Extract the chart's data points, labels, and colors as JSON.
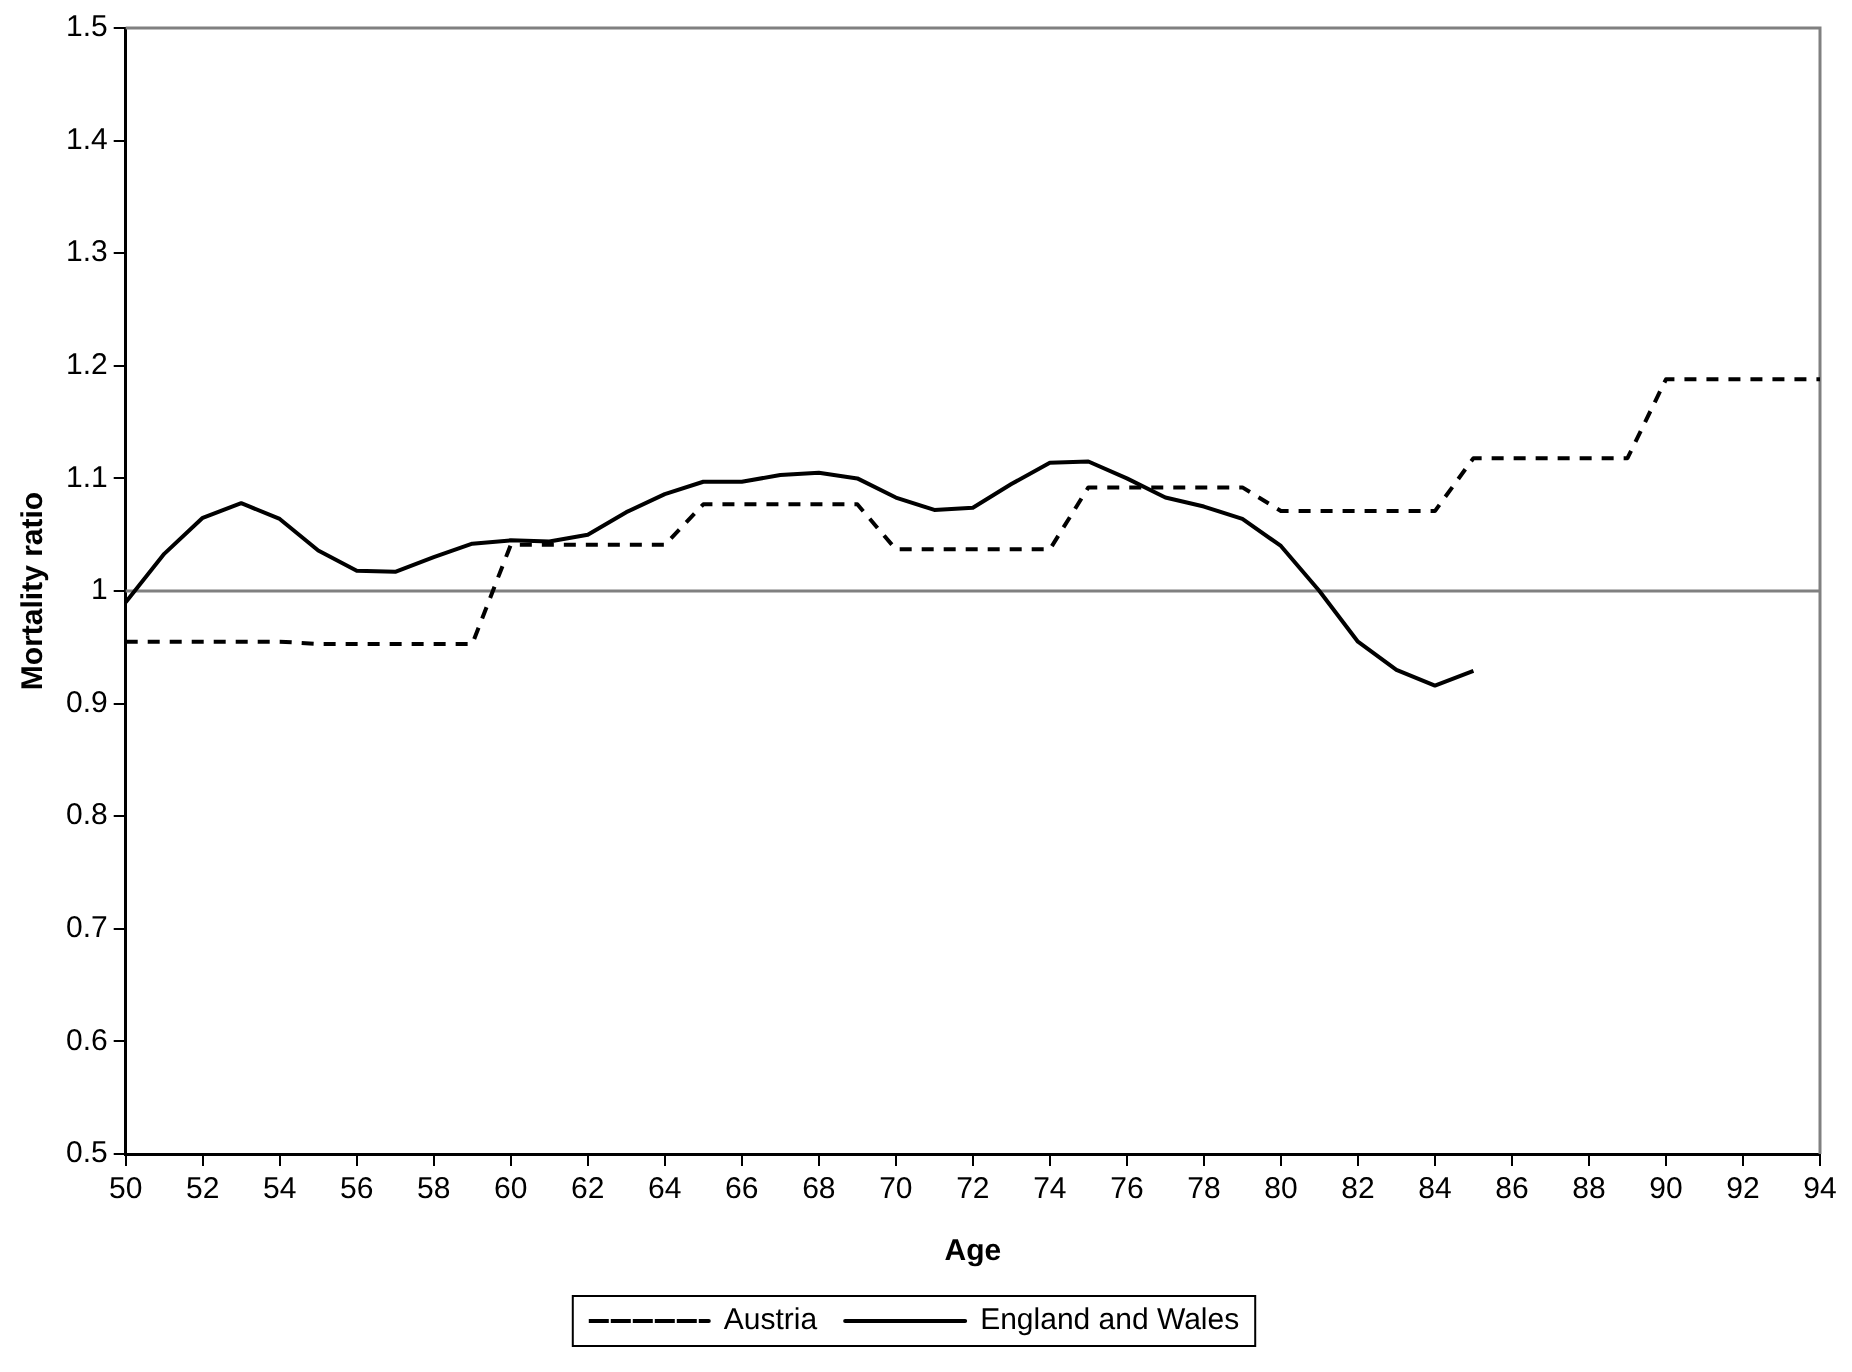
{
  "chart_data": {
    "type": "line",
    "xlabel": "Age",
    "ylabel": "Mortality ratio",
    "x": [
      50,
      51,
      52,
      53,
      54,
      55,
      56,
      57,
      58,
      59,
      60,
      61,
      62,
      63,
      64,
      65,
      66,
      67,
      68,
      69,
      70,
      71,
      72,
      73,
      74,
      75,
      76,
      77,
      78,
      79,
      80,
      81,
      82,
      83,
      84,
      85,
      86,
      87,
      88,
      89,
      90,
      91,
      92,
      93,
      94
    ],
    "series": [
      {
        "name": "Austria",
        "color": "#000000",
        "line_style": "dashed",
        "values": [
          0.955,
          0.955,
          0.955,
          0.955,
          0.955,
          0.953,
          0.953,
          0.953,
          0.953,
          0.953,
          1.041,
          1.041,
          1.041,
          1.041,
          1.041,
          1.077,
          1.077,
          1.077,
          1.077,
          1.077,
          1.037,
          1.037,
          1.037,
          1.037,
          1.037,
          1.092,
          1.092,
          1.092,
          1.092,
          1.092,
          1.071,
          1.071,
          1.071,
          1.071,
          1.071,
          1.118,
          1.118,
          1.118,
          1.118,
          1.118,
          1.188,
          1.188,
          1.188,
          1.188,
          1.188
        ]
      },
      {
        "name": "England and Wales",
        "color": "#000000",
        "line_style": "solid",
        "values": [
          0.99,
          1.033,
          1.065,
          1.078,
          1.064,
          1.036,
          1.018,
          1.017,
          1.03,
          1.042,
          1.045,
          1.044,
          1.05,
          1.07,
          1.086,
          1.097,
          1.097,
          1.103,
          1.105,
          1.1,
          1.083,
          1.072,
          1.074,
          1.095,
          1.114,
          1.115,
          1.1,
          1.083,
          1.075,
          1.064,
          1.04,
          1.0,
          0.955,
          0.93,
          0.916,
          0.929,
          null,
          null,
          null,
          null,
          null,
          null,
          null,
          null,
          null
        ]
      }
    ],
    "xlim": [
      50,
      94
    ],
    "xticks": [
      50,
      52,
      54,
      56,
      58,
      60,
      62,
      64,
      66,
      68,
      70,
      72,
      74,
      76,
      78,
      80,
      82,
      84,
      86,
      88,
      90,
      92,
      94
    ],
    "ylim": [
      0.5,
      1.5
    ],
    "yticks": [
      0.5,
      0.6,
      0.7,
      0.8,
      0.9,
      1,
      1.1,
      1.2,
      1.3,
      1.4,
      1.5
    ],
    "ref_lines": [
      {
        "axis": "y",
        "value": 1,
        "color": "#808080"
      }
    ],
    "grid": false,
    "legend": "bottom",
    "marker": "none"
  }
}
